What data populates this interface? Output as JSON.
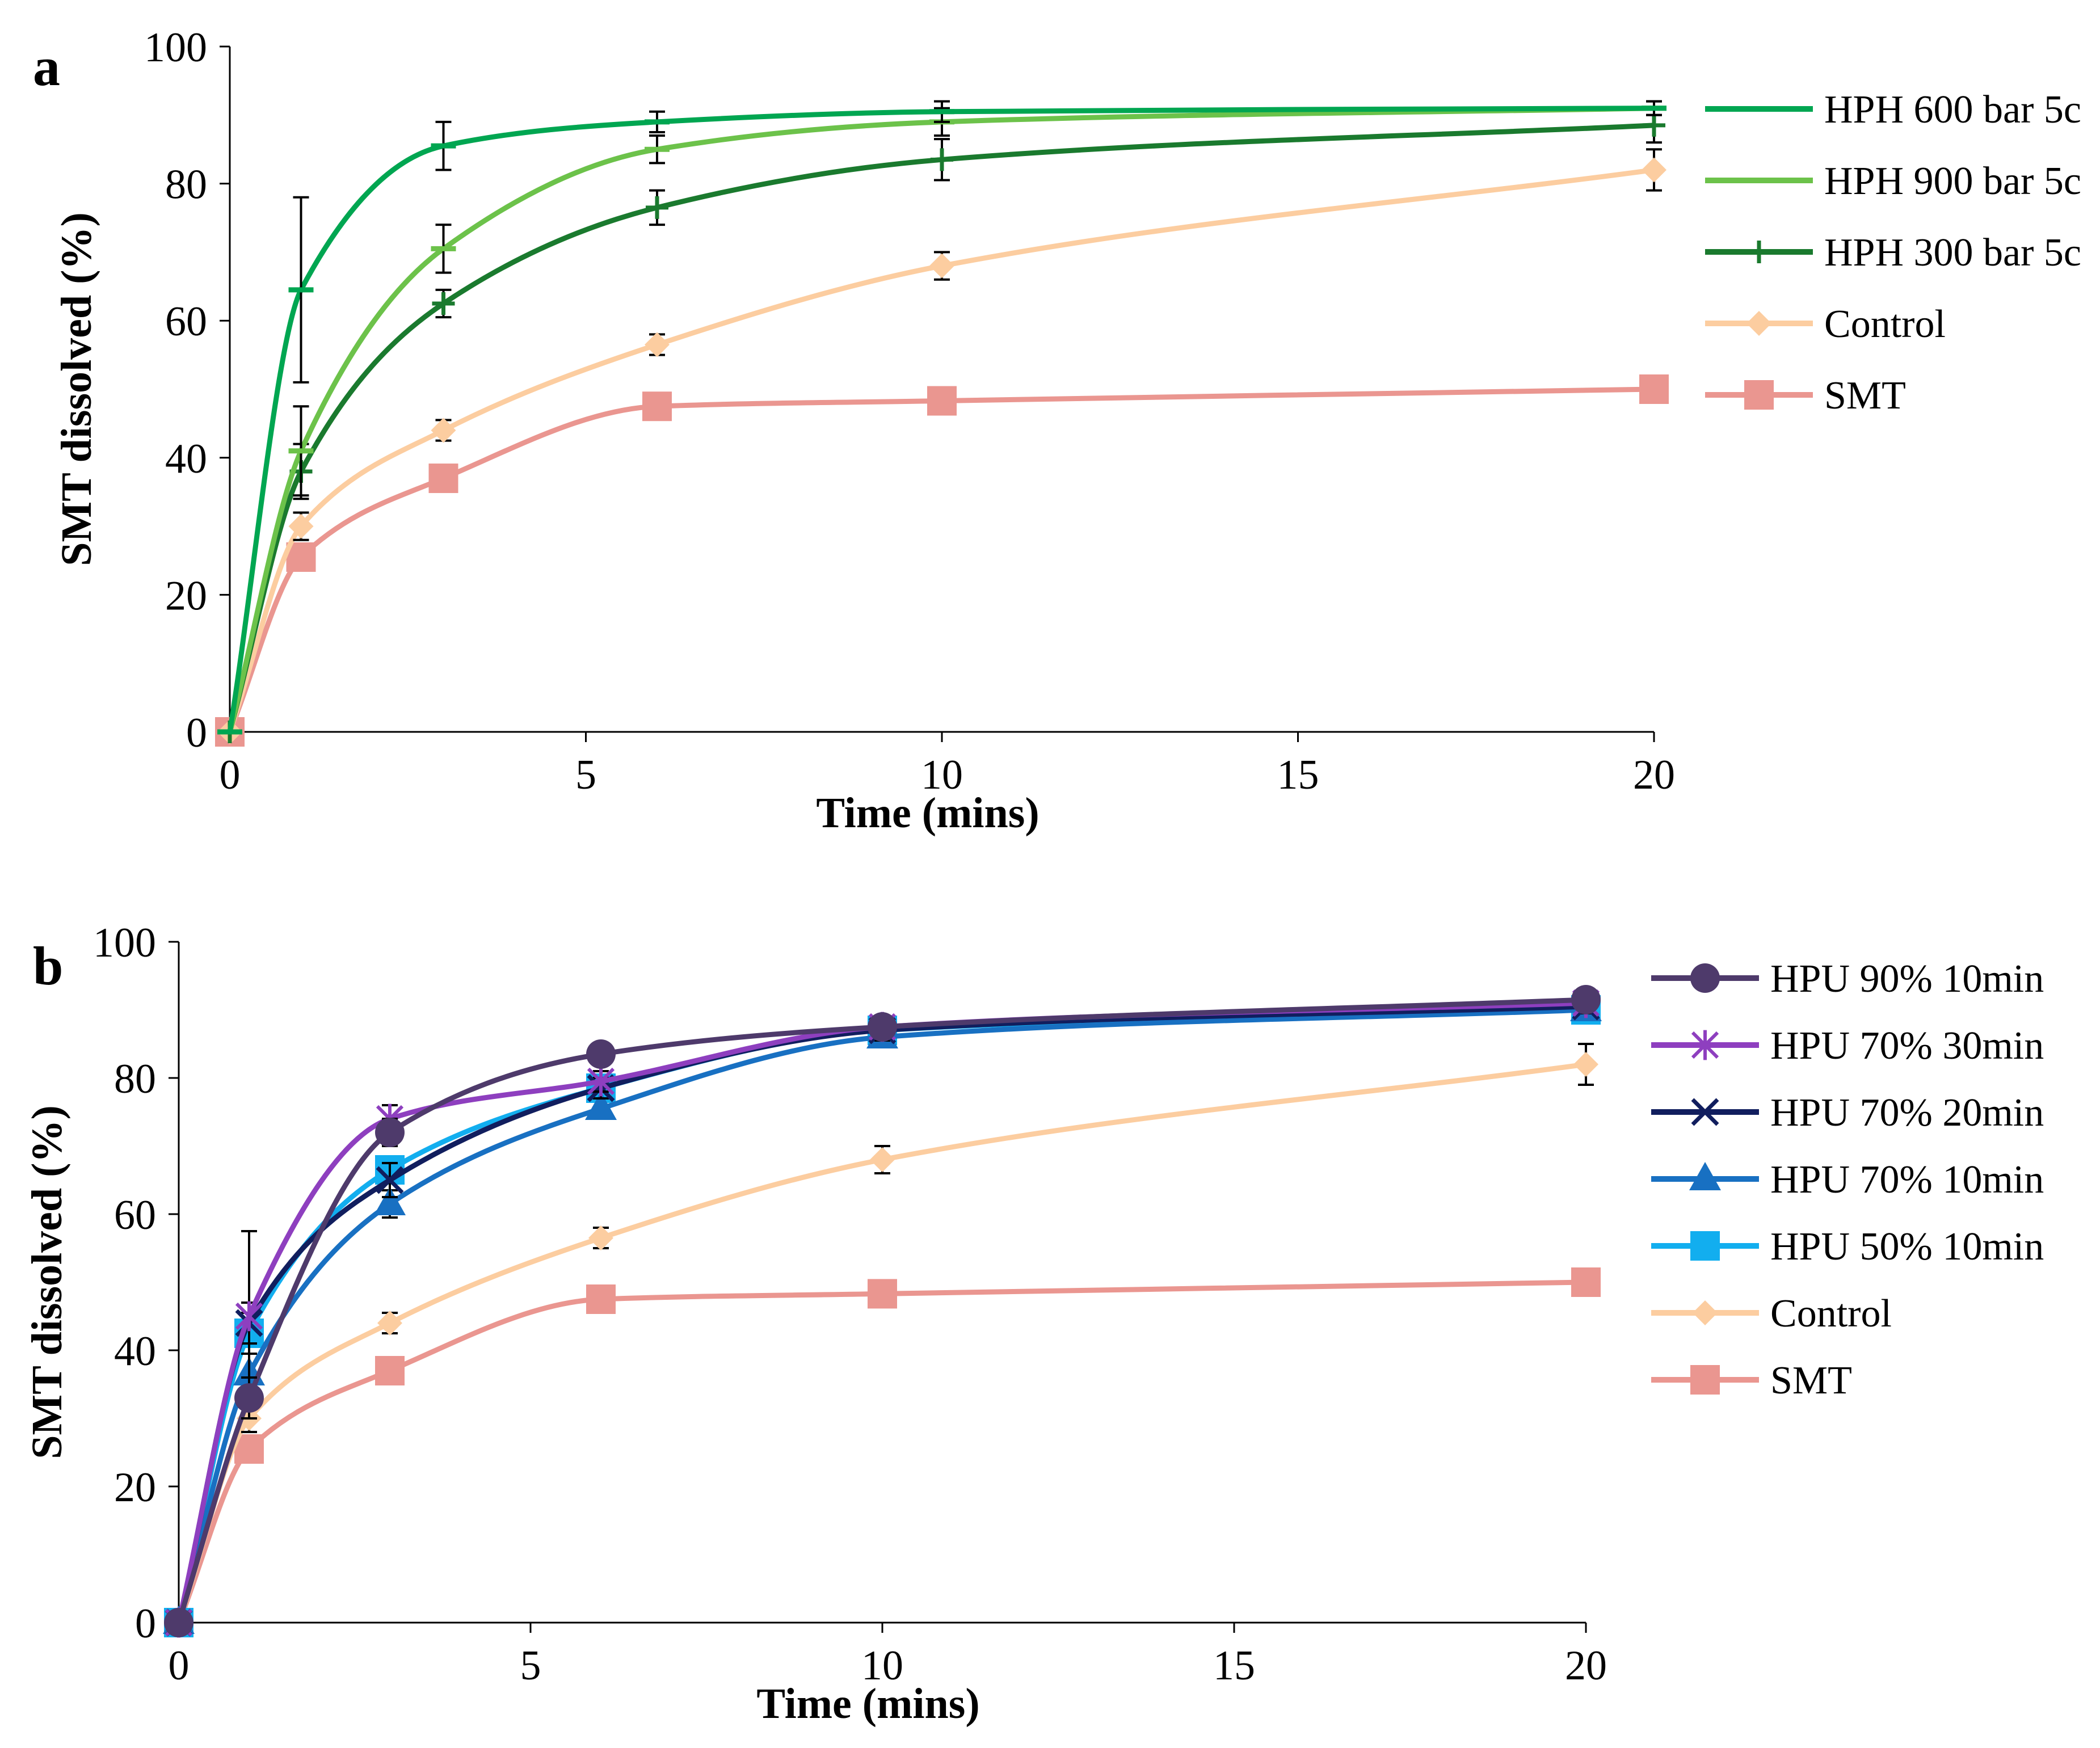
{
  "chart_data": [
    {
      "panel": "a",
      "type": "line",
      "xlabel": "Time (mins)",
      "ylabel": "SMT dissolved (%)",
      "xlim": [
        0,
        20
      ],
      "ylim": [
        0,
        100
      ],
      "xticks": [
        0,
        5,
        10,
        15,
        20
      ],
      "yticks": [
        0,
        20,
        40,
        60,
        80,
        100
      ],
      "legend_position": "right",
      "series": [
        {
          "name": "HPH 600 bar 5c",
          "color": "#00A651",
          "marker": "dash",
          "x": [
            0,
            1,
            3,
            6,
            10,
            20
          ],
          "y": [
            0,
            64.5,
            85.5,
            89,
            90.5,
            91
          ],
          "err": [
            0,
            13.5,
            3.5,
            1.5,
            1.5,
            1
          ]
        },
        {
          "name": "HPH 900 bar 5c",
          "color": "#6CC24A",
          "marker": "dash",
          "x": [
            0,
            1,
            3,
            6,
            10,
            20
          ],
          "y": [
            0,
            41,
            70.5,
            85,
            89,
            91
          ],
          "err": [
            0,
            6.5,
            3.5,
            2,
            2,
            1
          ]
        },
        {
          "name": "HPH 300 bar 5c",
          "color": "#1A7A2E",
          "marker": "plus",
          "x": [
            0,
            1,
            3,
            6,
            10,
            20
          ],
          "y": [
            0,
            38,
            62.5,
            76.5,
            83.5,
            88.5
          ],
          "err": [
            0,
            4,
            2,
            2.5,
            3,
            2.5
          ]
        },
        {
          "name": "Control",
          "color": "#FCCDA0",
          "marker": "diamond",
          "x": [
            0,
            1,
            3,
            6,
            10,
            20
          ],
          "y": [
            0,
            30,
            44,
            56.5,
            68,
            82
          ],
          "err": [
            0,
            2,
            1.5,
            1.5,
            2,
            3
          ]
        },
        {
          "name": "SMT",
          "color": "#EA9690",
          "marker": "square",
          "x": [
            0,
            1,
            3,
            6,
            10,
            20
          ],
          "y": [
            0,
            25.5,
            37,
            47.5,
            48.3,
            50
          ],
          "err": [
            0,
            0,
            0,
            0,
            0,
            0
          ]
        }
      ]
    },
    {
      "panel": "b",
      "type": "line",
      "xlabel": "Time (mins)",
      "ylabel": "SMT dissolved (%)",
      "xlim": [
        0,
        20
      ],
      "ylim": [
        0,
        100
      ],
      "xticks": [
        0,
        5,
        10,
        15,
        20
      ],
      "yticks": [
        0,
        20,
        40,
        60,
        80,
        100
      ],
      "legend_position": "right",
      "series": [
        {
          "name": "HPU 90% 10min",
          "color": "#4E3A6B",
          "marker": "circle",
          "x": [
            0,
            1,
            3,
            6,
            10,
            20
          ],
          "y": [
            0,
            33,
            72,
            83.5,
            87.5,
            91.5
          ],
          "err": [
            0,
            3,
            2,
            1.5,
            1.5,
            1
          ]
        },
        {
          "name": "HPU 70% 30min",
          "color": "#8E3FBF",
          "marker": "star",
          "x": [
            0,
            1,
            3,
            6,
            10,
            20
          ],
          "y": [
            0,
            45,
            74,
            79.5,
            87.5,
            91
          ],
          "err": [
            0,
            12.5,
            2,
            1.5,
            1.5,
            1
          ]
        },
        {
          "name": "HPU 70% 20min",
          "color": "#111E5E",
          "marker": "x",
          "x": [
            0,
            1,
            3,
            6,
            10,
            20
          ],
          "y": [
            0,
            44,
            65,
            78.5,
            87,
            90.5
          ],
          "err": [
            0,
            3,
            2.5,
            1.5,
            1.5,
            1
          ]
        },
        {
          "name": "HPU 70% 10min",
          "color": "#1870C2",
          "marker": "triangle",
          "x": [
            0,
            1,
            3,
            6,
            10,
            20
          ],
          "y": [
            0,
            36.5,
            61.5,
            75.5,
            86,
            90
          ],
          "err": [
            0,
            3,
            2,
            1.5,
            1.5,
            1
          ]
        },
        {
          "name": "HPU 50% 10min",
          "color": "#12AEEF",
          "marker": "square",
          "x": [
            0,
            1,
            3,
            6,
            10,
            20
          ],
          "y": [
            0,
            42.5,
            66.5,
            78.5,
            87,
            90
          ],
          "err": [
            0,
            3,
            2,
            1.5,
            1.5,
            1
          ]
        },
        {
          "name": "Control",
          "color": "#FCCDA0",
          "marker": "diamond",
          "x": [
            0,
            1,
            3,
            6,
            10,
            20
          ],
          "y": [
            0,
            30,
            44,
            56.5,
            68,
            82
          ],
          "err": [
            0,
            2,
            1.5,
            1.5,
            2,
            3
          ]
        },
        {
          "name": "SMT",
          "color": "#EA9690",
          "marker": "square",
          "x": [
            0,
            1,
            3,
            6,
            10,
            20
          ],
          "y": [
            0,
            25.5,
            37,
            47.5,
            48.3,
            50
          ],
          "err": [
            0,
            0,
            0,
            0,
            0,
            0
          ]
        }
      ]
    }
  ]
}
